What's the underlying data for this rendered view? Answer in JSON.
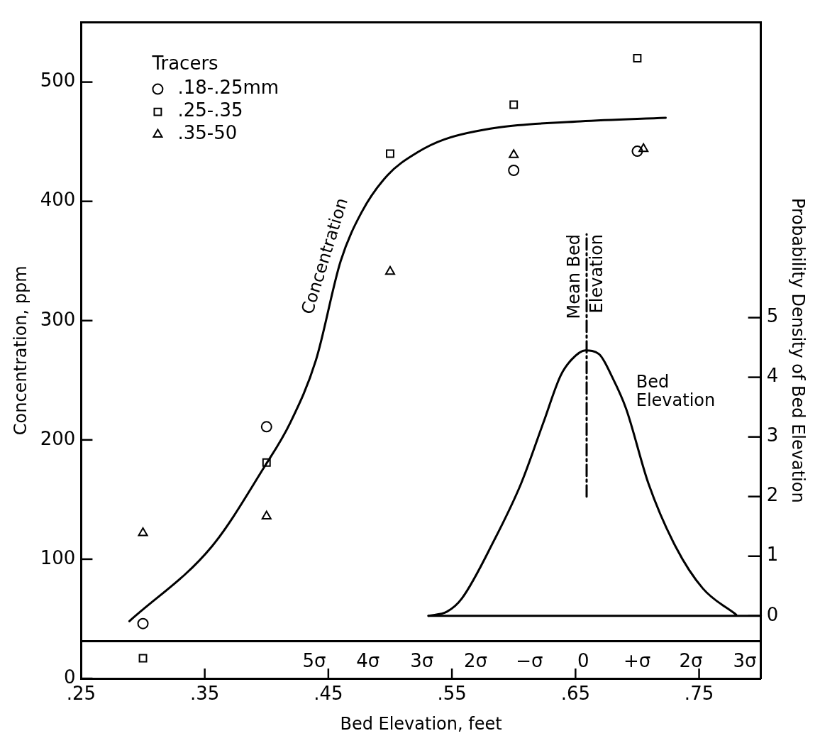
{
  "chart_data": {
    "type": "scatter",
    "xlabel": "Bed Elevation, feet",
    "ylabel": "Concentration, ppm",
    "y2label": "Probability Density of Bed Elevation",
    "legend_title": "Tracers",
    "legend": "top left",
    "grid": false,
    "xlim": [
      0.25,
      0.8
    ],
    "xticks": [
      {
        "value": 0.25,
        "label": ".25"
      },
      {
        "value": 0.35,
        "label": ".35"
      },
      {
        "value": 0.45,
        "label": ".45"
      },
      {
        "value": 0.55,
        "label": ".55"
      },
      {
        "value": 0.65,
        "label": ".65"
      },
      {
        "value": 0.75,
        "label": ".75"
      }
    ],
    "ylim": [
      0,
      550
    ],
    "yticks": [
      0,
      100,
      200,
      300,
      400,
      500
    ],
    "y2lim": [
      -1.05,
      9.95
    ],
    "y2ticks": [
      0,
      1,
      2,
      3,
      4,
      5
    ],
    "x2lim": [
      -9.33,
      3.3
    ],
    "x2ticks": [
      {
        "value": -5,
        "label": "5σ"
      },
      {
        "value": -4,
        "label": "4σ"
      },
      {
        "value": -3,
        "label": "3σ"
      },
      {
        "value": -2,
        "label": "2σ"
      },
      {
        "value": -1,
        "label": "−σ"
      },
      0,
      {
        "value": 1,
        "label": "+σ"
      },
      {
        "value": 2,
        "label": "2σ"
      },
      {
        "value": 3,
        "label": "3σ"
      }
    ],
    "series": [
      {
        "name": ".18-.25mm",
        "marker": "circle",
        "color": "#000000",
        "x": [
          0.3,
          0.4,
          0.6,
          0.7
        ],
        "values": [
          46,
          211,
          426,
          442
        ]
      },
      {
        "name": ".25-.35",
        "marker": "square",
        "color": "#000000",
        "x": [
          0.3,
          0.4,
          0.5,
          0.6,
          0.7
        ],
        "values": [
          17,
          181,
          440,
          481,
          520
        ]
      },
      {
        "name": ".35-50",
        "marker": "triangle",
        "color": "#000000",
        "x": [
          0.3,
          0.4,
          0.5,
          0.6,
          0.705
        ],
        "values": [
          122,
          136,
          341,
          439,
          444
        ]
      },
      {
        "name": "Concentration",
        "type": "line",
        "marker": "none",
        "color": "#000000",
        "x": [
          0.289,
          0.356,
          0.398,
          0.419,
          0.44,
          0.46,
          0.477,
          0.498,
          0.522,
          0.544,
          0.588,
          0.654,
          0.723
        ],
        "values": [
          48,
          111,
          177,
          214,
          267,
          350,
          391,
          422,
          441,
          452,
          462,
          467,
          470
        ]
      },
      {
        "name": "Bed Elevation",
        "type": "line",
        "marker": "none",
        "axis": "y2",
        "color": "#000000",
        "x": [
          0.531,
          0.546,
          0.558,
          0.584,
          0.606,
          0.624,
          0.638,
          0.647,
          0.658,
          0.669,
          0.68,
          0.691,
          0.709,
          0.731,
          0.753,
          0.78
        ],
        "values": [
          0,
          0.07,
          0.29,
          1.26,
          2.22,
          3.24,
          4.03,
          4.3,
          4.45,
          4.39,
          3.99,
          3.47,
          2.22,
          1.16,
          0.46,
          0.02
        ]
      },
      {
        "type": "line",
        "marker": "none",
        "axis": "y2",
        "color": "#000000",
        "x": [
          0.531,
          0.8
        ],
        "values": [
          0,
          0
        ]
      },
      {
        "name": "Mean Bed Elevation",
        "type": "line",
        "marker": "none",
        "axis": "y2",
        "line_style": "dashed",
        "color": "#000000",
        "x": [
          0.659,
          0.659
        ],
        "values": [
          2.0,
          6.4
        ]
      }
    ]
  }
}
